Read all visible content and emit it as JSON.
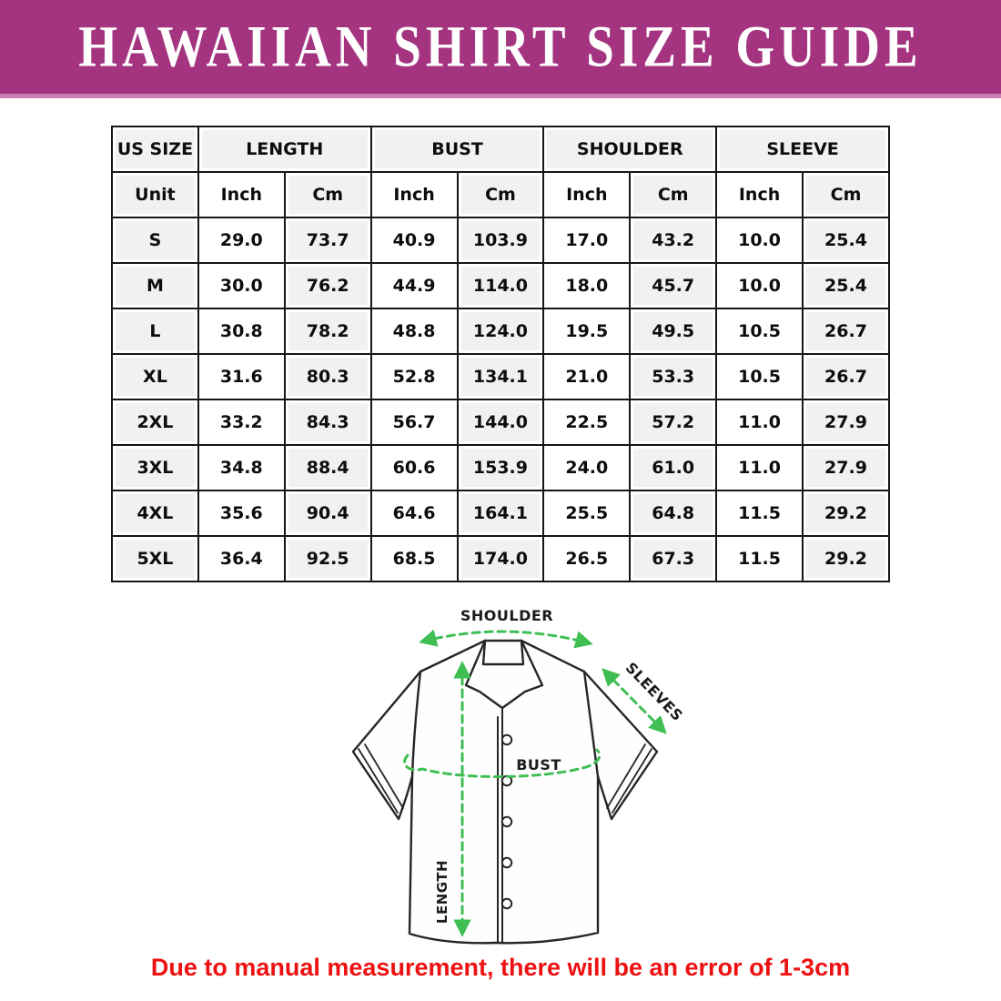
{
  "title": "HAWAIIAN SHIRT SIZE GUIDE",
  "colors": {
    "banner": "#a43480",
    "banner_edge": "#c97fb2",
    "cell_gray": "#f1f1f1",
    "table_border": "#161616",
    "arrow_green": "#3fbe54",
    "note_red": "#ee1111"
  },
  "table": {
    "group_headers": [
      {
        "label": "US SIZE",
        "span": 1
      },
      {
        "label": "LENGTH",
        "span": 2
      },
      {
        "label": "BUST",
        "span": 2
      },
      {
        "label": "SHOULDER",
        "span": 2
      },
      {
        "label": "SLEEVE",
        "span": 2
      }
    ],
    "unit_row": [
      "Unit",
      "Inch",
      "Cm",
      "Inch",
      "Cm",
      "Inch",
      "Cm",
      "Inch",
      "Cm"
    ],
    "rows": [
      [
        "S",
        "29.0",
        "73.7",
        "40.9",
        "103.9",
        "17.0",
        "43.2",
        "10.0",
        "25.4"
      ],
      [
        "M",
        "30.0",
        "76.2",
        "44.9",
        "114.0",
        "18.0",
        "45.7",
        "10.0",
        "25.4"
      ],
      [
        "L",
        "30.8",
        "78.2",
        "48.8",
        "124.0",
        "19.5",
        "49.5",
        "10.5",
        "26.7"
      ],
      [
        "XL",
        "31.6",
        "80.3",
        "52.8",
        "134.1",
        "21.0",
        "53.3",
        "10.5",
        "26.7"
      ],
      [
        "2XL",
        "33.2",
        "84.3",
        "56.7",
        "144.0",
        "22.5",
        "57.2",
        "11.0",
        "27.9"
      ],
      [
        "3XL",
        "34.8",
        "88.4",
        "60.6",
        "153.9",
        "24.0",
        "61.0",
        "11.0",
        "27.9"
      ],
      [
        "4XL",
        "35.6",
        "90.4",
        "64.6",
        "164.1",
        "25.5",
        "64.8",
        "11.5",
        "29.2"
      ],
      [
        "5XL",
        "36.4",
        "92.5",
        "68.5",
        "174.0",
        "26.5",
        "67.3",
        "11.5",
        "29.2"
      ]
    ]
  },
  "diagram_labels": {
    "shoulder": "SHOULDER",
    "sleeves": "SLEEVES",
    "bust": "BUST",
    "length": "LENGTH"
  },
  "footnote": "Due to manual measurement, there will be an error of 1-3cm"
}
